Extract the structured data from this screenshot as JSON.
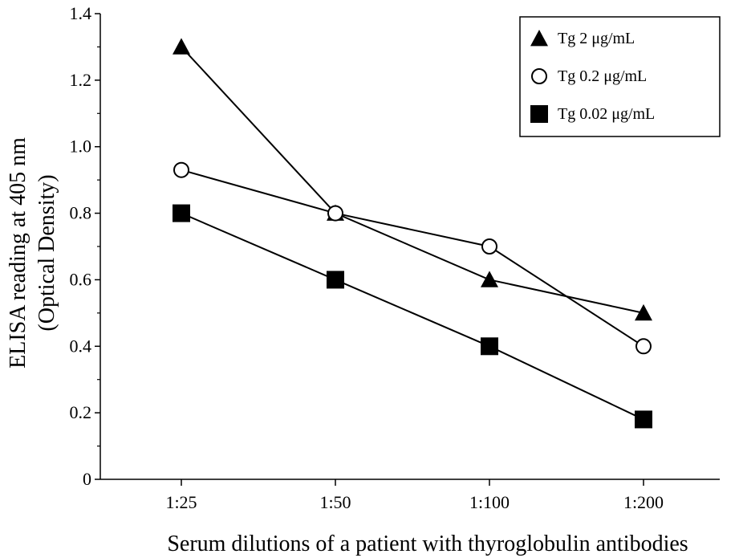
{
  "chart_data": {
    "type": "line",
    "categories": [
      "1:25",
      "1:50",
      "1:100",
      "1:200"
    ],
    "series": [
      {
        "name": "Tg 2 μg/mL",
        "marker": "triangle-filled",
        "values": [
          1.3,
          0.8,
          0.6,
          0.5
        ]
      },
      {
        "name": "Tg 0.2 μg/mL",
        "marker": "circle-open",
        "values": [
          0.93,
          0.8,
          0.7,
          0.4
        ]
      },
      {
        "name": "Tg 0.02 μg/mL",
        "marker": "square-filled",
        "values": [
          0.8,
          0.6,
          0.4,
          0.18
        ]
      }
    ],
    "yticks": [
      "0",
      "0.2",
      "0.4",
      "0.6",
      "0.8",
      "1.0",
      "1.2",
      "1.4"
    ],
    "ylim": [
      0,
      1.4
    ],
    "ylabel": "ELISA reading at 405 nm",
    "ylabel_line2": "(Optical Density)",
    "xlabel": "Serum dilutions of a patient with thyroglobulin antibodies",
    "legend_position": "top-right",
    "grid": false,
    "colors": {
      "line": "#000000",
      "marker": "#000000",
      "background": "#ffffff"
    }
  }
}
